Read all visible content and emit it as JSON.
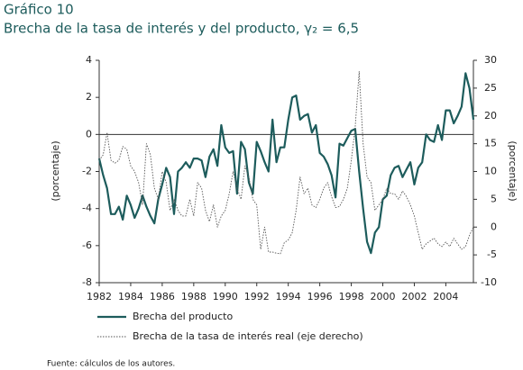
{
  "chart_data": {
    "type": "line",
    "figure_label": "Gráfico 10",
    "title": "Brecha de la tasa de interés y del producto, γ₂ = 6,5",
    "ylabel": "(porcentaje)",
    "y2label": "(porcentaje)",
    "source": "Fuente: cálculos de los autores.",
    "x": [
      1982,
      1982.25,
      1982.5,
      1982.75,
      1983,
      1983.25,
      1983.5,
      1983.75,
      1984,
      1984.25,
      1984.5,
      1984.75,
      1985,
      1985.25,
      1985.5,
      1985.75,
      1986,
      1986.25,
      1986.5,
      1986.75,
      1987,
      1987.25,
      1987.5,
      1987.75,
      1988,
      1988.25,
      1988.5,
      1988.75,
      1989,
      1989.25,
      1989.5,
      1989.75,
      1990,
      1990.25,
      1990.5,
      1990.75,
      1991,
      1991.25,
      1991.5,
      1991.75,
      1992,
      1992.25,
      1992.5,
      1992.75,
      1993,
      1993.25,
      1993.5,
      1993.75,
      1994,
      1994.25,
      1994.5,
      1994.75,
      1995,
      1995.25,
      1995.5,
      1995.75,
      1996,
      1996.25,
      1996.5,
      1996.75,
      1997,
      1997.25,
      1997.5,
      1997.75,
      1998,
      1998.25,
      1998.5,
      1998.75,
      1999,
      1999.25,
      1999.5,
      1999.75,
      2000,
      2000.25,
      2000.5,
      2000.75,
      2001,
      2001.25,
      2001.5,
      2001.75,
      2002,
      2002.25,
      2002.5,
      2002.75,
      2003,
      2003.25,
      2003.5,
      2003.75,
      2004,
      2004.25,
      2004.5,
      2004.75,
      2005,
      2005.25,
      2005.5,
      2005.75
    ],
    "series": [
      {
        "name": "Brecha del producto",
        "color": "#1d5c5c",
        "style": "solid",
        "values": [
          -1.3,
          -2.2,
          -2.9,
          -4.3,
          -4.3,
          -3.9,
          -4.6,
          -3.3,
          -3.8,
          -4.5,
          -4.0,
          -3.3,
          -3.9,
          -4.4,
          -4.8,
          -3.5,
          -2.7,
          -1.8,
          -2.3,
          -4.3,
          -2.0,
          -1.8,
          -1.5,
          -1.8,
          -1.3,
          -1.3,
          -1.4,
          -2.3,
          -1.2,
          -0.8,
          -1.7,
          0.5,
          -0.7,
          -1.0,
          -0.9,
          -3.2,
          -0.4,
          -0.8,
          -2.6,
          -3.2,
          -0.4,
          -0.9,
          -1.5,
          -2.0,
          0.8,
          -1.5,
          -0.7,
          -0.7,
          0.8,
          2.0,
          2.1,
          0.8,
          1.0,
          1.1,
          0.1,
          0.5,
          -1.0,
          -1.2,
          -1.6,
          -2.2,
          -3.4,
          -0.5,
          -0.6,
          -0.2,
          0.2,
          0.3,
          -2.0,
          -4.0,
          -5.8,
          -6.4,
          -5.3,
          -5.0,
          -3.5,
          -3.3,
          -2.2,
          -1.8,
          -1.7,
          -2.3,
          -1.9,
          -1.5,
          -2.7,
          -1.8,
          -1.5,
          0.0,
          -0.3,
          -0.4,
          0.5,
          -0.3,
          1.3,
          1.3,
          0.6,
          1.0,
          1.5,
          3.3,
          2.5,
          0.8
        ]
      },
      {
        "name": "Brecha de la tasa de interés real (eje derecho)",
        "color": "#555555",
        "style": "dotted",
        "axis": "y2",
        "values": [
          12,
          13,
          17,
          12,
          11.5,
          12,
          14.5,
          14,
          11,
          10,
          8,
          4,
          15,
          13,
          7,
          5,
          10,
          8,
          3,
          5,
          3,
          2,
          2,
          5,
          2,
          8,
          7,
          3,
          1,
          4,
          0,
          2,
          3,
          6,
          10,
          7,
          5,
          11,
          9,
          5,
          4,
          -4,
          0,
          -4.5,
          -4.5,
          -4.7,
          -4.8,
          -2.8,
          -2.3,
          -1,
          3,
          9,
          6,
          7,
          4,
          3.5,
          5,
          7,
          8,
          5.5,
          3.5,
          3.7,
          5,
          7,
          12,
          18,
          28,
          15,
          9,
          8,
          3,
          4,
          5,
          7,
          6,
          6,
          5,
          6.5,
          5.5,
          4,
          2,
          -1,
          -4,
          -3,
          -2.5,
          -2,
          -3,
          -3.5,
          -2.7,
          -3.5,
          -2,
          -3,
          -4,
          -3.5,
          -1.5,
          0
        ]
      }
    ],
    "xlim": [
      1982,
      2005.75
    ],
    "xticks": [
      1982,
      1984,
      1986,
      1988,
      1990,
      1992,
      1994,
      1996,
      1998,
      2000,
      2002,
      2004
    ],
    "ylim": [
      -8,
      4
    ],
    "yticks": [
      -8,
      -6,
      -4,
      -2,
      0,
      2,
      4
    ],
    "y2lim": [
      -10,
      30
    ],
    "y2ticks": [
      -10,
      -5,
      0,
      5,
      10,
      15,
      20,
      25,
      30
    ],
    "zero_line": true
  }
}
